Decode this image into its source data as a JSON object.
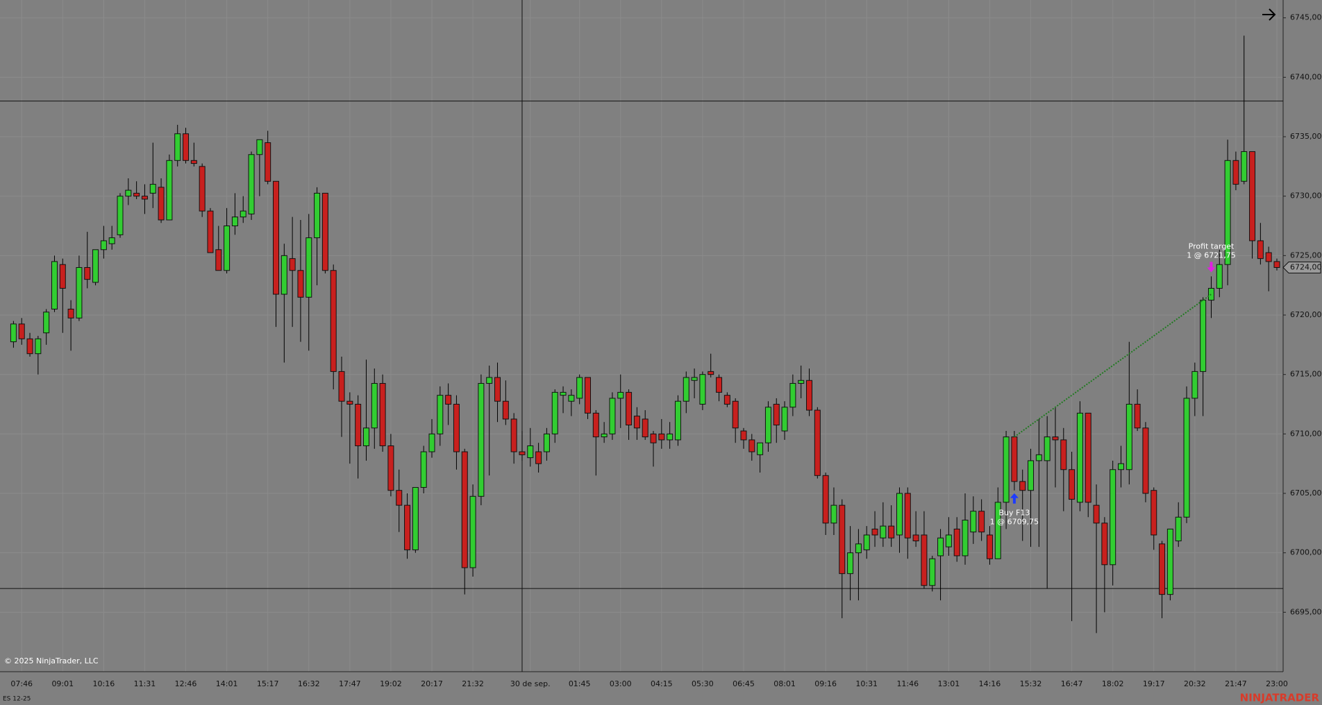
{
  "chart_data": {
    "type": "candlestick",
    "instrument": "ES 12-25",
    "copyright": "© 2025 NinjaTrader, LLC",
    "watermark": "NINJATRADER",
    "colors": {
      "up": "#32cd32",
      "down": "#c8201e",
      "background": "#808080",
      "wick": "#000000",
      "trade_line": "#1f7a1f",
      "buy_arrow": "#1e3cff",
      "sell_arrow": "#e020e0",
      "watermark": "#e8301c"
    },
    "ylim": [
      6690,
      6746.5
    ],
    "yticks": [
      {
        "value": 6695,
        "label": "6695,00"
      },
      {
        "value": 6700,
        "label": "6700,00"
      },
      {
        "value": 6705,
        "label": "6705,00"
      },
      {
        "value": 6710,
        "label": "6710,00"
      },
      {
        "value": 6715,
        "label": "6715,00"
      },
      {
        "value": 6720,
        "label": "6720,00"
      },
      {
        "value": 6725,
        "label": "6725,00"
      },
      {
        "value": 6730,
        "label": "6730,00"
      },
      {
        "value": 6735,
        "label": "6735,00"
      },
      {
        "value": 6740,
        "label": "6740,00"
      },
      {
        "value": 6745,
        "label": "6745,00"
      }
    ],
    "grid": true,
    "last_price": {
      "value": 6724,
      "label": "6724,00"
    },
    "crosshair": {
      "bar": 62,
      "price": 6738
    },
    "horizontal_line": 6697,
    "entry": {
      "label": "Buy F13",
      "detail": "1 @ 6709,75",
      "price": 6709.75,
      "bar": 122
    },
    "exit": {
      "label": "Profit target",
      "detail": "1 @ 6721,75",
      "price": 6721.75,
      "bar": 146
    },
    "categories": [
      null,
      "07:46",
      null,
      null,
      null,
      null,
      "09:01",
      null,
      null,
      null,
      null,
      "10:16",
      null,
      null,
      null,
      null,
      "11:31",
      null,
      null,
      null,
      null,
      "12:46",
      null,
      null,
      null,
      null,
      "14:01",
      null,
      null,
      null,
      null,
      "15:17",
      null,
      null,
      null,
      null,
      "16:32",
      null,
      null,
      null,
      null,
      "17:47",
      null,
      null,
      null,
      null,
      "19:02",
      null,
      null,
      null,
      null,
      "20:17",
      null,
      null,
      null,
      null,
      "21:32",
      null,
      null,
      null,
      null,
      null,
      null,
      "30 de sep.",
      null,
      null,
      null,
      null,
      null,
      "01:45",
      null,
      null,
      null,
      null,
      "03:00",
      null,
      null,
      null,
      null,
      "04:15",
      null,
      null,
      null,
      null,
      "05:30",
      null,
      null,
      null,
      null,
      "06:45",
      null,
      null,
      null,
      null,
      "08:01",
      null,
      null,
      null,
      null,
      "09:16",
      null,
      null,
      null,
      null,
      "10:31",
      null,
      null,
      null,
      null,
      "11:46",
      null,
      null,
      null,
      null,
      "13:01",
      null,
      null,
      null,
      null,
      "14:16",
      null,
      null,
      null,
      null,
      "15:32",
      null,
      null,
      null,
      null,
      "16:47",
      null,
      null,
      null,
      null,
      "18:02",
      null,
      null,
      null,
      null,
      "19:17",
      null,
      null,
      null,
      null,
      "20:32",
      null,
      null,
      null,
      null,
      "21:47",
      null,
      null,
      null,
      null,
      "23:00"
    ],
    "open": [
      6717.75,
      6719.25,
      6718.0,
      6716.75,
      6718.5,
      6720.5,
      6724.25,
      6720.5,
      6719.75,
      6724.0,
      6722.75,
      6725.5,
      6726.0,
      6726.75,
      6730.0,
      6730.25,
      6730.0,
      6730.25,
      6730.75,
      6728.0,
      6733.0,
      6735.25,
      6733.0,
      6732.5,
      6728.75,
      6725.5,
      6723.75,
      6727.5,
      6728.25,
      6728.5,
      6733.5,
      6734.5,
      6731.25,
      6721.75,
      6724.75,
      6723.75,
      6721.5,
      6726.5,
      6730.25,
      6723.75,
      6715.25,
      6712.75,
      6712.5,
      6709.0,
      6710.5,
      6714.25,
      6709.0,
      6705.25,
      6704.0,
      6700.25,
      6705.5,
      6708.5,
      6710.0,
      6713.25,
      6712.5,
      6708.5,
      6698.75,
      6704.75,
      6714.25,
      6714.75,
      6712.75,
      6711.25,
      6708.5,
      6708.0,
      6708.5,
      6708.5,
      6710.0,
      6713.25,
      6712.75,
      6713.0,
      6714.75,
      6711.75,
      6709.75,
      6710.0,
      6713.0,
      6713.5,
      6711.5,
      6711.25,
      6710.0,
      6710.0,
      6709.5,
      6709.5,
      6712.75,
      6714.5,
      6712.5,
      6715.25,
      6714.75,
      6713.25,
      6712.75,
      6710.25,
      6709.5,
      6708.25,
      6709.25,
      6712.5,
      6710.25,
      6712.25,
      6714.25,
      6714.5,
      6712.0,
      6706.5,
      6702.5,
      6704.0,
      6698.25,
      6700.0,
      6700.25,
      6702.0,
      6701.25,
      6702.25,
      6701.5,
      6705.0,
      6701.5,
      6701.5,
      6697.25,
      6699.75,
      6700.5,
      6702.0,
      6699.75,
      6701.75,
      6703.5,
      6701.5,
      6699.5,
      6704.25,
      6709.75,
      6706.0,
      6705.25,
      6707.75,
      6707.75,
      6709.75,
      6709.5,
      6707.0,
      6704.25,
      6711.75,
      6704.0,
      6702.5,
      6699.0,
      6707.0,
      6707.0,
      6712.5,
      6710.5,
      6705.25,
      6700.75,
      6696.5,
      6701.0,
      6703.0,
      6713.0,
      6715.25,
      6721.25,
      6722.25,
      6724.25,
      6733.0,
      6731.25,
      6733.75,
      6726.25,
      6725.25,
      6724.5
    ],
    "high": [
      6719.5,
      6719.75,
      6718.5,
      6718.25,
      6720.5,
      6725.0,
      6724.75,
      6721.25,
      6725.0,
      6727.0,
      6725.5,
      6727.5,
      6727.5,
      6730.25,
      6731.5,
      6731.25,
      6731.0,
      6734.5,
      6731.5,
      6733.5,
      6736.0,
      6735.75,
      6734.5,
      6732.75,
      6729.0,
      6727.5,
      6729.0,
      6730.25,
      6730.0,
      6733.75,
      6734.75,
      6735.5,
      6731.25,
      6726.0,
      6728.25,
      6728.0,
      6728.5,
      6730.75,
      6730.25,
      6724.25,
      6716.5,
      6713.5,
      6713.25,
      6716.25,
      6715.5,
      6715.0,
      6710.0,
      6707.0,
      6705.0,
      6705.5,
      6709.0,
      6711.25,
      6714.0,
      6714.25,
      6713.25,
      6708.75,
      6705.75,
      6715.0,
      6715.75,
      6716.0,
      6714.5,
      6711.75,
      6710.25,
      6710.5,
      6709.25,
      6710.5,
      6713.75,
      6714.0,
      6713.75,
      6715.0,
      6714.75,
      6712.0,
      6711.0,
      6713.5,
      6715.0,
      6713.75,
      6712.25,
      6712.0,
      6710.25,
      6711.25,
      6711.0,
      6713.25,
      6715.25,
      6715.5,
      6715.25,
      6716.75,
      6715.0,
      6713.5,
      6713.0,
      6710.5,
      6710.0,
      6709.25,
      6712.75,
      6713.0,
      6712.75,
      6715.0,
      6715.75,
      6715.5,
      6712.25,
      6706.75,
      6705.5,
      6704.5,
      6702.25,
      6702.0,
      6702.25,
      6703.5,
      6704.25,
      6704.0,
      6705.5,
      6705.5,
      6703.5,
      6703.5,
      6699.75,
      6702.0,
      6703.0,
      6703.0,
      6705.0,
      6704.75,
      6704.5,
      6702.25,
      6705.5,
      6710.25,
      6710.25,
      6707.0,
      6708.75,
      6711.25,
      6711.5,
      6712.25,
      6710.5,
      6708.5,
      6712.75,
      6711.75,
      6705.75,
      6703.0,
      6707.75,
      6709.0,
      6717.75,
      6713.75,
      6711.0,
      6705.5,
      6701.0,
      6702.0,
      6704.25,
      6714.0,
      6716.0,
      6721.5,
      6723.25,
      6725.5,
      6734.75,
      6733.75,
      6743.5,
      6733.75,
      6727.75,
      6725.75,
      6724.75
    ],
    "low": [
      6717.25,
      6717.5,
      6716.5,
      6715.0,
      6717.5,
      6720.25,
      6718.5,
      6717.0,
      6719.5,
      6722.25,
      6722.5,
      6724.75,
      6725.5,
      6726.5,
      6729.25,
      6729.75,
      6728.5,
      6729.0,
      6727.75,
      6728.0,
      6732.5,
      6732.75,
      6732.5,
      6728.25,
      6725.25,
      6723.75,
      6723.5,
      6726.75,
      6727.75,
      6728.0,
      6730.0,
      6731.0,
      6719.0,
      6716.0,
      6719.0,
      6717.75,
      6717.0,
      6722.5,
      6723.5,
      6713.75,
      6709.75,
      6707.5,
      6706.25,
      6707.75,
      6708.75,
      6708.5,
      6704.75,
      6701.75,
      6699.5,
      6700.0,
      6705.0,
      6708.0,
      6709.0,
      6710.75,
      6707.0,
      6696.5,
      6698.0,
      6704.0,
      6706.5,
      6711.0,
      6710.75,
      6707.5,
      6707.75,
      6707.25,
      6706.75,
      6707.75,
      6709.25,
      6711.75,
      6711.5,
      6712.5,
      6711.25,
      6706.5,
      6709.25,
      6709.5,
      6710.5,
      6709.5,
      6709.5,
      6709.5,
      6707.25,
      6708.75,
      6708.75,
      6709.0,
      6711.75,
      6713.0,
      6712.0,
      6714.75,
      6712.75,
      6712.25,
      6709.25,
      6708.75,
      6707.75,
      6706.75,
      6708.5,
      6709.25,
      6709.5,
      6711.5,
      6713.0,
      6711.5,
      6706.25,
      6701.5,
      6701.5,
      6694.5,
      6696.0,
      6696.0,
      6699.5,
      6700.5,
      6700.5,
      6700.5,
      6700.0,
      6699.5,
      6700.5,
      6697.0,
      6696.75,
      6696.0,
      6699.75,
      6699.25,
      6699.0,
      6700.75,
      6701.0,
      6699.0,
      6699.5,
      6702.0,
      6705.25,
      6701.0,
      6700.5,
      6700.5,
      6697.0,
      6705.5,
      6703.5,
      6694.25,
      6703.5,
      6703.0,
      6693.25,
      6695.0,
      6697.25,
      6705.5,
      6705.75,
      6710.25,
      6704.25,
      6700.25,
      6694.5,
      6696.0,
      6700.5,
      6702.5,
      6711.5,
      6711.5,
      6719.75,
      6721.5,
      6722.5,
      6730.5,
      6731.0,
      6724.75,
      6724.25,
      6722.0,
      6723.75
    ],
    "close": [
      6719.25,
      6718.0,
      6716.75,
      6718.0,
      6720.25,
      6724.5,
      6722.25,
      6719.75,
      6724.0,
      6723.0,
      6725.5,
      6726.25,
      6726.5,
      6730.0,
      6730.5,
      6730.0,
      6729.75,
      6731.0,
      6728.0,
      6733.0,
      6735.25,
      6733.0,
      6732.75,
      6728.75,
      6725.25,
      6723.75,
      6727.5,
      6728.25,
      6728.75,
      6733.5,
      6734.75,
      6731.25,
      6721.75,
      6725.0,
      6723.75,
      6721.5,
      6726.5,
      6730.25,
      6723.75,
      6715.25,
      6712.75,
      6712.5,
      6709.0,
      6710.5,
      6714.25,
      6709.0,
      6705.25,
      6704.0,
      6700.25,
      6705.5,
      6708.5,
      6710.0,
      6713.25,
      6712.5,
      6708.5,
      6698.75,
      6704.75,
      6714.25,
      6714.75,
      6712.75,
      6711.25,
      6708.5,
      6708.25,
      6709.0,
      6707.5,
      6710.0,
      6713.5,
      6713.5,
      6713.25,
      6714.75,
      6711.75,
      6709.75,
      6710.0,
      6713.0,
      6713.5,
      6710.75,
      6710.5,
      6709.75,
      6709.25,
      6709.5,
      6710.0,
      6712.75,
      6714.75,
      6714.75,
      6715.0,
      6715.0,
      6713.5,
      6712.5,
      6710.5,
      6709.5,
      6708.5,
      6709.25,
      6712.25,
      6710.75,
      6712.25,
      6714.25,
      6714.5,
      6712.0,
      6706.5,
      6702.5,
      6704.0,
      6698.25,
      6700.0,
      6700.75,
      6701.5,
      6701.5,
      6702.25,
      6701.25,
      6705.0,
      6701.25,
      6701.0,
      6697.25,
      6699.5,
      6701.25,
      6701.5,
      6699.75,
      6702.75,
      6703.5,
      6701.75,
      6699.5,
      6704.25,
      6709.75,
      6706.0,
      6705.25,
      6707.75,
      6708.25,
      6709.75,
      6709.5,
      6707.0,
      6704.5,
      6711.75,
      6704.25,
      6702.5,
      6699.0,
      6707.0,
      6707.5,
      6712.5,
      6710.5,
      6705.0,
      6701.5,
      6696.5,
      6702.0,
      6703.0,
      6713.0,
      6715.25,
      6721.25,
      6722.25,
      6724.25,
      6733.0,
      6731.0,
      6733.75,
      6726.25,
      6724.75,
      6724.5,
      6724.0
    ]
  }
}
